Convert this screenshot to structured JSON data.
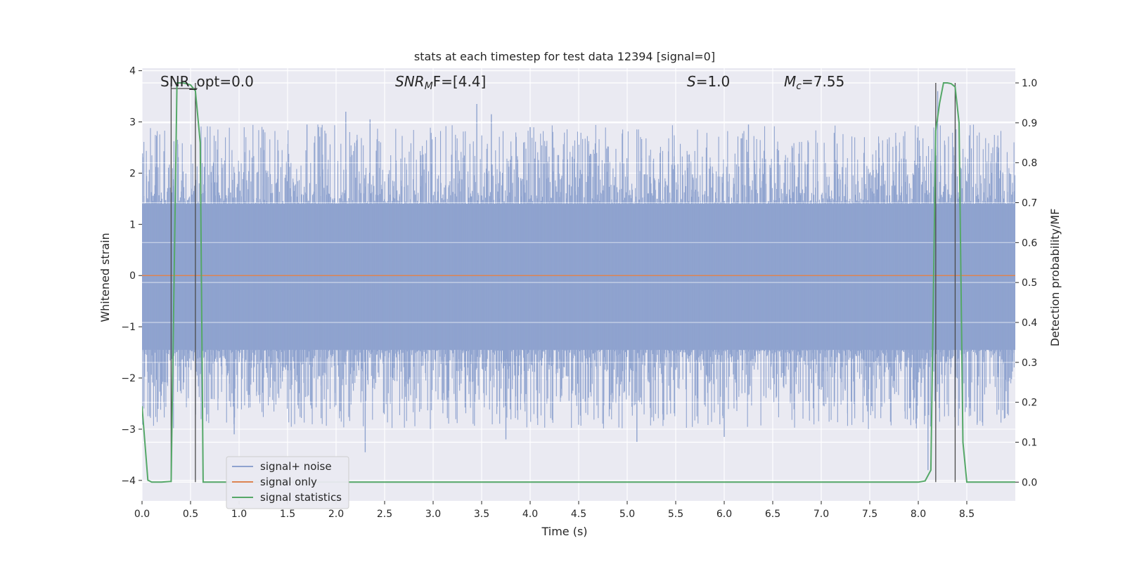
{
  "chart_data": {
    "type": "line",
    "title": "stats at each timestep for test data 12394 [signal=0]",
    "xlabel": "Time (s)",
    "ylabel": "Whitened strain",
    "ylabel_right": "Detection probability/MF",
    "xlim": [
      0.0,
      9.0
    ],
    "ylim": [
      -4.4,
      4.05
    ],
    "ylim_right": [
      -0.047,
      1.037
    ],
    "x_ticks": [
      "0.0",
      "0.5",
      "1.0",
      "1.5",
      "2.0",
      "2.5",
      "3.0",
      "3.5",
      "4.0",
      "4.5",
      "5.0",
      "5.5",
      "6.0",
      "6.5",
      "7.0",
      "7.5",
      "8.0",
      "8.5"
    ],
    "y_ticks": [
      "4",
      "3",
      "2",
      "1",
      "0",
      "−1",
      "−2",
      "−3",
      "−4"
    ],
    "y_right_ticks": [
      "1.0",
      "0.9",
      "0.8",
      "0.7",
      "0.6",
      "0.5",
      "0.4",
      "0.3",
      "0.2",
      "0.1",
      "0.0"
    ],
    "grid": true,
    "legend_position": "lower-left",
    "annotations": [
      {
        "id": "snr_opt",
        "text": "SNR_opt=0.0"
      },
      {
        "id": "snr_mf_base",
        "text": "SNR"
      },
      {
        "id": "snr_mf_sub",
        "text": "M"
      },
      {
        "id": "snr_mf_rest",
        "text": "F=[4.4]"
      },
      {
        "id": "s_var",
        "text": "S"
      },
      {
        "id": "s_val",
        "text": "=1.0"
      },
      {
        "id": "mc_var",
        "text": "M"
      },
      {
        "id": "mc_sub",
        "text": "c"
      },
      {
        "id": "mc_val",
        "text": "=7.55"
      }
    ],
    "series": [
      {
        "name": "signal+ noise",
        "color": "#8fa3cf",
        "noise_band": {
          "core_low": -1.45,
          "core_high": 1.4,
          "peaks": [
            {
              "x": 0.65,
              "y": 2.7
            },
            {
              "x": 1.25,
              "y": 2.85
            },
            {
              "x": 1.7,
              "y": 2.95
            },
            {
              "x": 2.1,
              "y": 3.2
            },
            {
              "x": 2.35,
              "y": 3.05
            },
            {
              "x": 3.45,
              "y": 3.35
            },
            {
              "x": 3.6,
              "y": 3.15
            },
            {
              "x": 4.0,
              "y": 2.9
            },
            {
              "x": 6.25,
              "y": 2.95
            },
            {
              "x": 8.2,
              "y": 3.6
            },
            {
              "x": 0.95,
              "y": -3.1
            },
            {
              "x": 2.3,
              "y": -3.45
            },
            {
              "x": 3.75,
              "y": -3.2
            },
            {
              "x": 5.1,
              "y": -3.25
            },
            {
              "x": 6.0,
              "y": -3.15
            },
            {
              "x": 8.1,
              "y": -3.8
            }
          ]
        }
      },
      {
        "name": "signal only",
        "color": "#dd8452",
        "y_constant": 0.0
      },
      {
        "name": "signal statistics",
        "color": "#55a868",
        "axis": "right",
        "points": [
          [
            0.0,
            0.19
          ],
          [
            0.06,
            0.005
          ],
          [
            0.1,
            0.0
          ],
          [
            0.2,
            0.0
          ],
          [
            0.3,
            0.002
          ],
          [
            0.36,
            1.0
          ],
          [
            0.42,
            1.0
          ],
          [
            0.46,
            0.998
          ],
          [
            0.5,
            0.995
          ],
          [
            0.55,
            0.98
          ],
          [
            0.6,
            0.85
          ],
          [
            0.63,
            0.0
          ],
          [
            0.7,
            0.0
          ],
          [
            1.0,
            0.0
          ],
          [
            2.0,
            0.0
          ],
          [
            3.0,
            0.0
          ],
          [
            4.0,
            0.0
          ],
          [
            5.0,
            0.0
          ],
          [
            6.0,
            0.0
          ],
          [
            7.0,
            0.0
          ],
          [
            8.0,
            0.0
          ],
          [
            8.07,
            0.003
          ],
          [
            8.13,
            0.03
          ],
          [
            8.18,
            0.88
          ],
          [
            8.22,
            0.95
          ],
          [
            8.26,
            1.0
          ],
          [
            8.3,
            1.0
          ],
          [
            8.34,
            0.998
          ],
          [
            8.38,
            0.99
          ],
          [
            8.42,
            0.9
          ],
          [
            8.46,
            0.1
          ],
          [
            8.5,
            0.0
          ],
          [
            8.6,
            0.0
          ],
          [
            9.0,
            0.0
          ]
        ]
      }
    ],
    "vertical_markers": [
      0.3,
      0.55,
      8.18,
      8.38
    ],
    "horizontal_marker_right": {
      "y": 1.0,
      "x_from": 0.3,
      "x_to": 0.57
    }
  }
}
